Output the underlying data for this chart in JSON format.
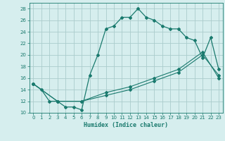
{
  "xlabel": "Humidex (Indice chaleur)",
  "bg_color": "#d6eeee",
  "grid_color": "#aacccc",
  "line_color": "#1a7a6e",
  "xlim": [
    -0.5,
    23.5
  ],
  "ylim": [
    10,
    29
  ],
  "xticks": [
    0,
    1,
    2,
    3,
    4,
    5,
    6,
    7,
    8,
    9,
    10,
    11,
    12,
    13,
    14,
    15,
    16,
    17,
    18,
    19,
    20,
    21,
    22,
    23
  ],
  "yticks": [
    10,
    12,
    14,
    16,
    18,
    20,
    22,
    24,
    26,
    28
  ],
  "series1_x": [
    0,
    1,
    2,
    3,
    4,
    5,
    6,
    7,
    8,
    9,
    10,
    11,
    12,
    13,
    14,
    15,
    16,
    17,
    18,
    19,
    20,
    21,
    22,
    23
  ],
  "series1_y": [
    15,
    14,
    12,
    12,
    11,
    11,
    10.5,
    16.5,
    20,
    24.5,
    25,
    26.5,
    26.5,
    28,
    26.5,
    26,
    25,
    24.5,
    24.5,
    23,
    22.5,
    19.5,
    23,
    17.5
  ],
  "series2_x": [
    0,
    3,
    6,
    9,
    12,
    15,
    18,
    21,
    23
  ],
  "series2_y": [
    15,
    12,
    12,
    13.5,
    14.5,
    16,
    17.5,
    20.5,
    16
  ],
  "series3_x": [
    0,
    3,
    6,
    9,
    12,
    15,
    18,
    21,
    23
  ],
  "series3_y": [
    15,
    12,
    12,
    13,
    14,
    15.5,
    17,
    20,
    16.5
  ],
  "marker": "D",
  "markersize": 2.0,
  "linewidth1": 0.9,
  "linewidth2": 0.8,
  "tick_fontsize": 5.0,
  "xlabel_fontsize": 6.0
}
